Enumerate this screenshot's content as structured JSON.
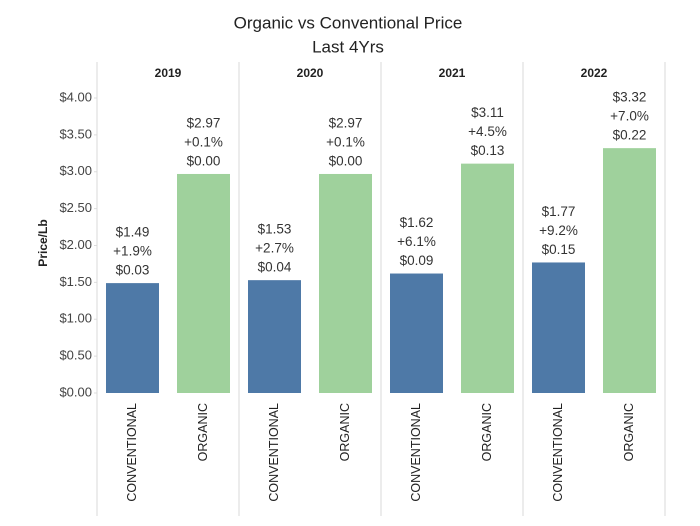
{
  "chart_data": {
    "type": "bar",
    "title": "Organic vs Conventional Price",
    "subtitle": "Last 4Yrs",
    "y_label": "Price/Lb",
    "ylim": [
      0,
      4
    ],
    "yticks": [
      {
        "value": 0,
        "label": "$0.00"
      },
      {
        "value": 0.5,
        "label": "$0.50"
      },
      {
        "value": 1,
        "label": "$1.00"
      },
      {
        "value": 1.5,
        "label": "$1.50"
      },
      {
        "value": 2,
        "label": "$2.00"
      },
      {
        "value": 2.5,
        "label": "$2.50"
      },
      {
        "value": 3,
        "label": "$3.00"
      },
      {
        "value": 3.5,
        "label": "$3.50"
      },
      {
        "value": 4,
        "label": "$4.00"
      }
    ],
    "colors": [
      "#4e79a7",
      "#9fd19c"
    ],
    "panels": [
      {
        "name": "2019",
        "categories": [
          "CONVENTIONAL",
          "ORGANIC"
        ],
        "values": [
          1.49,
          2.97
        ],
        "value_labels": [
          "$1.49",
          "$2.97"
        ],
        "pct_change": [
          1.9,
          0.1
        ],
        "pct_change_labels": [
          "+1.9%",
          "+0.1%"
        ],
        "change": [
          0.03,
          0.0
        ],
        "change_labels": [
          "$0.03",
          "$0.00"
        ]
      },
      {
        "name": "2020",
        "categories": [
          "CONVENTIONAL",
          "ORGANIC"
        ],
        "values": [
          1.53,
          2.97
        ],
        "value_labels": [
          "$1.53",
          "$2.97"
        ],
        "pct_change": [
          2.7,
          0.1
        ],
        "pct_change_labels": [
          "+2.7%",
          "+0.1%"
        ],
        "change": [
          0.04,
          0.0
        ],
        "change_labels": [
          "$0.04",
          "$0.00"
        ]
      },
      {
        "name": "2021",
        "categories": [
          "CONVENTIONAL",
          "ORGANIC"
        ],
        "values": [
          1.62,
          3.11
        ],
        "value_labels": [
          "$1.62",
          "$3.11"
        ],
        "pct_change": [
          6.1,
          4.5
        ],
        "pct_change_labels": [
          "+6.1%",
          "+4.5%"
        ],
        "change": [
          0.09,
          0.13
        ],
        "change_labels": [
          "$0.09",
          "$0.13"
        ]
      },
      {
        "name": "2022",
        "categories": [
          "CONVENTIONAL",
          "ORGANIC"
        ],
        "values": [
          1.77,
          3.32
        ],
        "value_labels": [
          "$1.77",
          "$3.32"
        ],
        "pct_change": [
          9.2,
          7.0
        ],
        "pct_change_labels": [
          "+9.2%",
          "+7.0%"
        ],
        "change": [
          0.15,
          0.22
        ],
        "change_labels": [
          "$0.15",
          "$0.22"
        ]
      }
    ]
  }
}
